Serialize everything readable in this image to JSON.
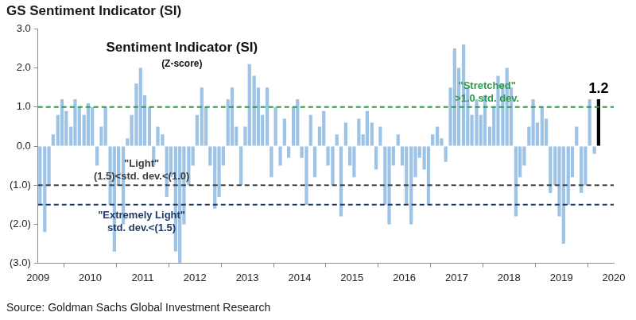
{
  "chart_data": {
    "type": "bar",
    "title": "GS Sentiment Indicator (SI)",
    "annotations": [
      "Sentiment Indicator (SI)",
      "(Z-score)"
    ],
    "source": "Source: Goldman Sachs Global Investment Research",
    "x": [
      2009.04,
      2009.13,
      2009.21,
      2009.29,
      2009.38,
      2009.46,
      2009.54,
      2009.63,
      2009.71,
      2009.79,
      2009.88,
      2009.96,
      2010.04,
      2010.13,
      2010.21,
      2010.29,
      2010.38,
      2010.46,
      2010.54,
      2010.63,
      2010.71,
      2010.79,
      2010.88,
      2010.96,
      2011.04,
      2011.13,
      2011.21,
      2011.29,
      2011.38,
      2011.46,
      2011.54,
      2011.63,
      2011.71,
      2011.79,
      2011.88,
      2011.96,
      2012.04,
      2012.13,
      2012.21,
      2012.29,
      2012.38,
      2012.46,
      2012.54,
      2012.63,
      2012.71,
      2012.79,
      2012.88,
      2012.96,
      2013.04,
      2013.13,
      2013.21,
      2013.29,
      2013.38,
      2013.46,
      2013.54,
      2013.63,
      2013.71,
      2013.79,
      2013.88,
      2013.96,
      2014.04,
      2014.13,
      2014.21,
      2014.29,
      2014.38,
      2014.46,
      2014.54,
      2014.63,
      2014.71,
      2014.79,
      2014.88,
      2014.96,
      2015.04,
      2015.13,
      2015.21,
      2015.29,
      2015.38,
      2015.46,
      2015.54,
      2015.63,
      2015.71,
      2015.79,
      2015.88,
      2015.96,
      2016.04,
      2016.13,
      2016.21,
      2016.29,
      2016.38,
      2016.46,
      2016.54,
      2016.63,
      2016.71,
      2016.79,
      2016.88,
      2016.96,
      2017.04,
      2017.13,
      2017.21,
      2017.29,
      2017.38,
      2017.46,
      2017.54,
      2017.63,
      2017.71,
      2017.79,
      2017.88,
      2017.96,
      2018.04,
      2018.13,
      2018.21,
      2018.29,
      2018.38,
      2018.46,
      2018.54,
      2018.63,
      2018.71,
      2018.79,
      2018.88,
      2018.96,
      2019.04,
      2019.13,
      2019.21,
      2019.29,
      2019.38,
      2019.46,
      2019.54,
      2019.63
    ],
    "series": [
      {
        "color": "#9dc3e6",
        "values": [
          -1.5,
          -2.2,
          -1.0,
          0.3,
          0.8,
          1.2,
          0.9,
          0.5,
          1.2,
          1.0,
          0.8,
          1.1,
          1.0,
          -0.5,
          0.5,
          1.0,
          -1.5,
          -2.7,
          -1.0,
          -2.0,
          0.2,
          0.8,
          1.6,
          2.0,
          1.3,
          1.0,
          -0.5,
          0.5,
          0.3,
          -1.3,
          -0.8,
          -2.7,
          -3.0,
          -2.0,
          -1.0,
          -0.5,
          0.8,
          1.5,
          1.0,
          -0.5,
          -1.6,
          -1.3,
          -0.5,
          1.2,
          1.5,
          0.5,
          -1.0,
          0.5,
          2.1,
          1.8,
          1.5,
          0.8,
          1.5,
          -0.8,
          1.0,
          -0.5,
          0.7,
          -0.3,
          1.0,
          1.2,
          -0.3,
          -1.5,
          0.8,
          -0.8,
          0.5,
          0.9,
          -0.5,
          -1.0,
          0.3,
          -1.8,
          0.6,
          -0.5,
          -0.8,
          0.7,
          0.3,
          0.9,
          0.6,
          -0.6,
          0.5,
          -1.5,
          -2.0,
          -0.5,
          0.3,
          -0.5,
          -1.5,
          -2.0,
          -0.8,
          -0.3,
          -0.6,
          -1.5,
          0.3,
          0.5,
          0.2,
          -0.4,
          1.5,
          2.5,
          2.0,
          2.6,
          1.5,
          0.8,
          1.2,
          0.8,
          1.3,
          0.5,
          1.0,
          1.8,
          1.6,
          2.0,
          1.5,
          -1.8,
          -0.8,
          -0.5,
          0.5,
          1.2,
          0.6,
          1.0,
          0.7,
          -1.2,
          -1.0,
          -1.8,
          -2.5,
          -1.5,
          -0.8,
          0.5,
          -1.2,
          -1.0,
          1.2,
          -0.2
        ]
      },
      {
        "color": "#000000",
        "x": [
          2019.71
        ],
        "values": [
          1.2
        ],
        "data_labels": true
      }
    ],
    "xlim": [
      2009,
      2020
    ],
    "xticks": [
      2009,
      2010,
      2011,
      2012,
      2013,
      2014,
      2015,
      2016,
      2017,
      2018,
      2019,
      2020
    ],
    "ylim": [
      -3,
      3
    ],
    "yticks": [
      {
        "value": 3,
        "label": "3.0"
      },
      {
        "value": 2,
        "label": "2.0"
      },
      {
        "value": 1,
        "label": "1.0"
      },
      {
        "value": 0,
        "label": "0.0"
      },
      {
        "value": -1,
        "label": "(1.0)"
      },
      {
        "value": -2,
        "label": "(2.0)"
      },
      {
        "value": -3,
        "label": "(3.0)"
      }
    ],
    "grid": false,
    "reference_lines": [
      {
        "value": 1,
        "color": "#2e9b48",
        "line_style": "dashed",
        "label": [
          "\"Stretched\"",
          ">1.0 std. dev."
        ]
      },
      {
        "value": -1,
        "color": "#404040",
        "line_style": "dashed",
        "label": [
          "\"Light\"",
          "(1.5)<std. dev.<(1.0)"
        ]
      },
      {
        "value": -1.5,
        "color": "#1f3864",
        "line_style": "dashed",
        "label": [
          "\"Extremely Light\"",
          "std. dev.<(1.5)"
        ]
      }
    ]
  }
}
